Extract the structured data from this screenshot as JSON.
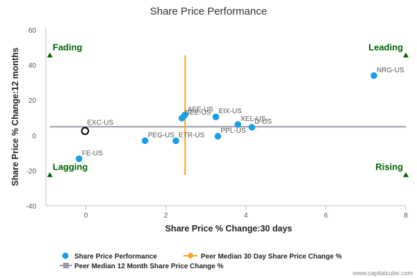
{
  "chart_data": {
    "type": "scatter",
    "title": "Share Price Performance",
    "xlabel": "Share Price % Change:30 days",
    "ylabel": "Share Price % Change:12 months",
    "xlim": [
      -1,
      8
    ],
    "ylim": [
      -40,
      60
    ],
    "xticks": [
      0,
      2,
      4,
      6,
      8
    ],
    "yticks": [
      -40,
      -20,
      0,
      20,
      40,
      60
    ],
    "grid": false,
    "legend_position": "bottom",
    "series_name": "Share Price Performance",
    "points": [
      {
        "label": "NRG-US",
        "x": 7.2,
        "y": 34
      },
      {
        "label": "AEE-US",
        "x": 2.47,
        "y": 11.5
      },
      {
        "label": "NEE-US",
        "x": 2.4,
        "y": 9.8
      },
      {
        "label": "EIX-US",
        "x": 3.25,
        "y": 10.5
      },
      {
        "label": "XEL-US",
        "x": 3.8,
        "y": 6.2
      },
      {
        "label": "D-US",
        "x": 4.15,
        "y": 4.6
      },
      {
        "label": "PPL-US",
        "x": 3.3,
        "y": -0.5
      },
      {
        "label": "PEG-US",
        "x": 1.48,
        "y": -3
      },
      {
        "label": "ETR-US",
        "x": 2.25,
        "y": -3.1
      },
      {
        "label": "FE-US",
        "x": -0.17,
        "y": -13.3
      }
    ],
    "highlight": {
      "label": "EXC-US",
      "x": -0.02,
      "y": 2.5
    },
    "median_30d": {
      "name": "Peer Median 30 Day Share Price Change %",
      "x": 2.48,
      "y_range": [
        -22.5,
        45.5
      ]
    },
    "median_12m": {
      "name": "Peer Median 12 Month Share Price Change %",
      "y": 4.9
    },
    "quadrants": [
      {
        "label": "Fading",
        "x": -0.9,
        "y": 45.5
      },
      {
        "label": "Leading",
        "x": 8,
        "y": 45.5
      },
      {
        "label": "Lagging",
        "x": -0.9,
        "y": -22.5
      },
      {
        "label": "Rising",
        "x": 8,
        "y": -22.5
      }
    ],
    "colors": {
      "points": "#1a9ee8",
      "median_30d": "#f5a623",
      "median_12m": "#9a9aa8",
      "quadrant": "#006400",
      "highlight_ring": "#000000"
    }
  },
  "legend": {
    "points_label": "Share Price Performance",
    "median_30d_label": "Peer Median 30 Day Share Price Change %",
    "median_12m_label": "Peer Median 12 Month Share Price Change %"
  },
  "credit": "www.capitalcube.com"
}
